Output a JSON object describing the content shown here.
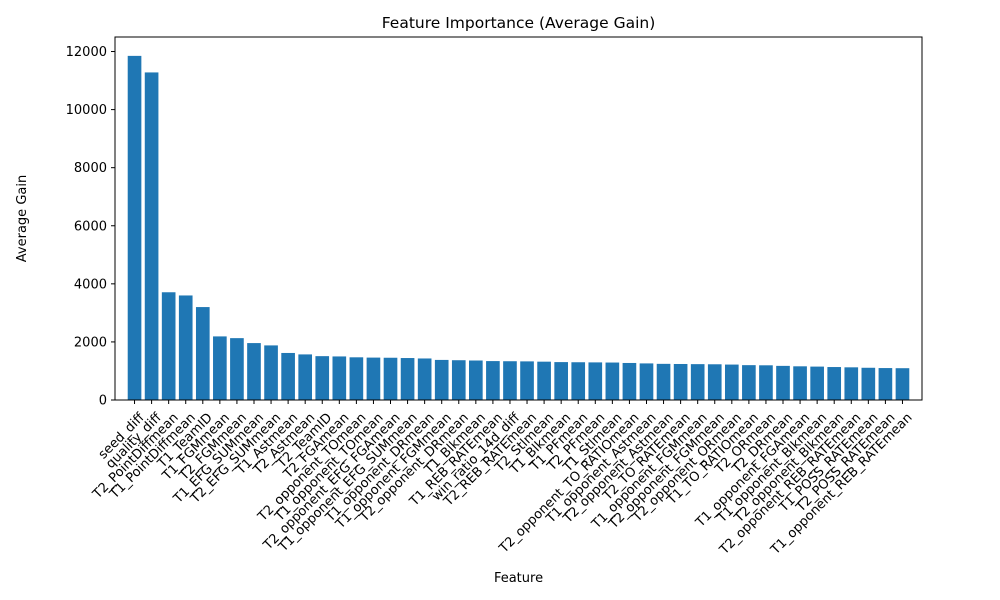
{
  "chart_data": {
    "type": "bar",
    "title": "Feature Importance (Average Gain)",
    "xlabel": "Feature",
    "ylabel": "Average Gain",
    "ylim": [
      0,
      12500
    ],
    "yticks": [
      0,
      2000,
      4000,
      6000,
      8000,
      10000,
      12000
    ],
    "ytick_labels": [
      "0",
      "2000",
      "4000",
      "6000",
      "8000",
      "10000",
      "12000"
    ],
    "grid": false,
    "bar_color": "#1f77b4",
    "categories": [
      "seed_diff",
      "quality_diff",
      "T2_PointDiffmean",
      "T1_PointDiffmean",
      "T1_TeamID",
      "T1_FGMmean",
      "T2_FGMmean",
      "T1_EFG_SUMmean",
      "T2_EFG_SUMmean",
      "T1_Astmean",
      "T2_Astmean",
      "T2_TeamID",
      "T2_FGAmean",
      "T2_opponent_TOmean",
      "T1_opponent_TOmean",
      "T2_opponent_EFG_FGAmean",
      "T1_opponent_EFG_SUMmean",
      "T1_opponent_DRmean",
      "T1_opponent_FGMmean",
      "T2_opponent_DRmean",
      "T1_Blkmean",
      "T1_REB_RATEmean",
      "win_ratio_14d_diff",
      "T2_REB_RATEmean",
      "T2_Stlmean",
      "T1_Blkmean",
      "T1_PFmean",
      "T2_PFmean",
      "T1_Stlmean",
      "T2_opponent_TO_RATIOmean",
      "T1_opponent_Astmean",
      "T2_opponent_Astmean",
      "T2_TO_RATEmean",
      "T1_opponent_FGMmean",
      "T2_opponent_FGMmean",
      "T2_opponent_ORmean",
      "T1_TO_RATIOmean",
      "T2_ORmean",
      "T2_DRmean",
      "T1_opponent_FGAmean",
      "T1_opponent_Blkmean",
      "T2_opponent_Blkmean",
      "T2_opponent_REB_RATEmean",
      "T1_POSS_RATEmean",
      "T2_POSS_RATEmean",
      "T1_opponent_REB_RATEmean"
    ],
    "values": [
      11850,
      11280,
      3710,
      3600,
      3200,
      2190,
      2130,
      1960,
      1880,
      1620,
      1570,
      1510,
      1500,
      1470,
      1460,
      1455,
      1445,
      1430,
      1380,
      1370,
      1360,
      1340,
      1335,
      1330,
      1320,
      1305,
      1300,
      1295,
      1290,
      1275,
      1260,
      1245,
      1240,
      1235,
      1230,
      1220,
      1200,
      1195,
      1175,
      1160,
      1150,
      1135,
      1125,
      1110,
      1100,
      1095
    ]
  }
}
